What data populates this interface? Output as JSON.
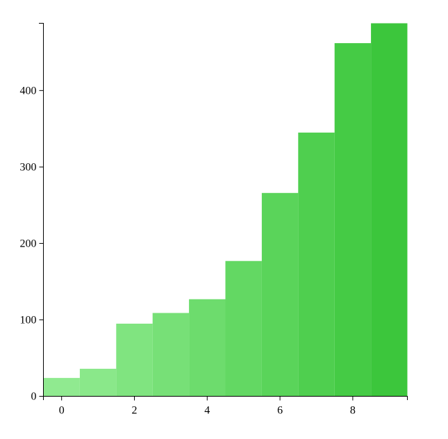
{
  "chart_data": {
    "type": "bar",
    "x": [
      0,
      1,
      2,
      3,
      4,
      5,
      6,
      7,
      8,
      9
    ],
    "values": [
      24,
      36,
      95,
      109,
      127,
      177,
      266,
      345,
      462,
      488
    ],
    "colors": [
      "#90ea90",
      "#8ae88a",
      "#80e480",
      "#77e077",
      "#6ddc6d",
      "#63d863",
      "#5ad45a",
      "#4fcf4f",
      "#45cb45",
      "#3cc63c"
    ],
    "xlim": [
      -0.5,
      9.5
    ],
    "xticks": [
      0,
      2,
      4,
      6,
      8
    ],
    "ylim": [
      0,
      488
    ],
    "yticks": [
      0,
      100,
      200,
      300,
      400
    ]
  }
}
